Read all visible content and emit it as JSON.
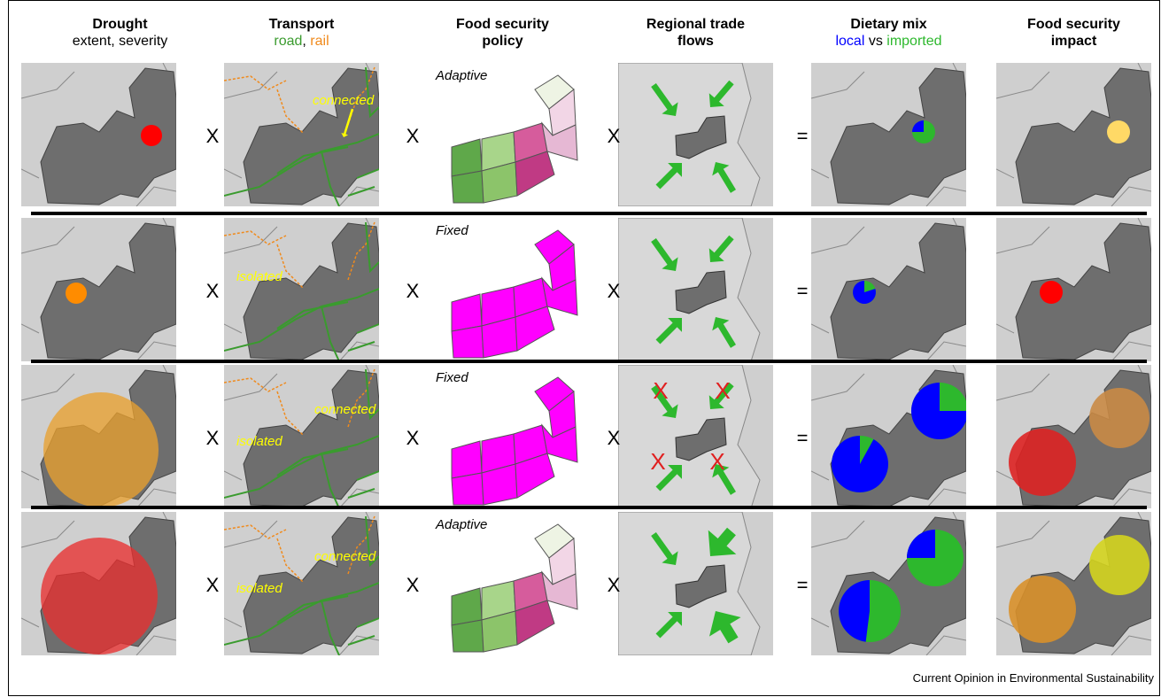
{
  "columns": [
    {
      "title": "Drought",
      "subtitle": "extent, severity"
    },
    {
      "title": "Transport",
      "sub_a": "road",
      "sub_sep": ", ",
      "sub_b": "rail"
    },
    {
      "title": "Food security",
      "title2": "policy"
    },
    {
      "title": "Regional trade",
      "title2": "flows"
    },
    {
      "title": "Dietary mix",
      "sub_a": "local",
      "sub_sep": " vs ",
      "sub_b": "imported"
    },
    {
      "title": "Food security",
      "title2": "impact"
    }
  ],
  "operators": {
    "times": "X",
    "equals": "="
  },
  "rows": [
    {
      "policy": "Adaptive",
      "transport_labels": [
        "connected"
      ],
      "drought_color": "#ff0000",
      "impact_color": "#ffd966",
      "local_share": 0.25,
      "trade": "open"
    },
    {
      "policy": "Fixed",
      "transport_labels": [
        "isolated"
      ],
      "drought_color": "#ff8c00",
      "impact_color": "#ff0000",
      "local_share": 0.8,
      "trade": "open"
    },
    {
      "policy": "Fixed",
      "transport_labels": [
        "connected",
        "isolated"
      ],
      "drought_color": "#e8a030",
      "impact_color": "#dd2222",
      "local_share": 0.85,
      "trade": "blocked"
    },
    {
      "policy": "Adaptive",
      "transport_labels": [
        "connected",
        "isolated"
      ],
      "drought_color": "#e83030",
      "impact_color": "#d4d41e",
      "local_share": 0.5,
      "trade": "strong"
    }
  ],
  "colors": {
    "road": "#3a9b2e",
    "rail": "#f08a1c",
    "local": "#0000ff",
    "imported": "#2db82d",
    "country": "#6e6e6e",
    "background": "#cfcfcf",
    "fixed_policy": "#ff00ff"
  },
  "credit": "Current Opinion in Environmental Sustainability"
}
